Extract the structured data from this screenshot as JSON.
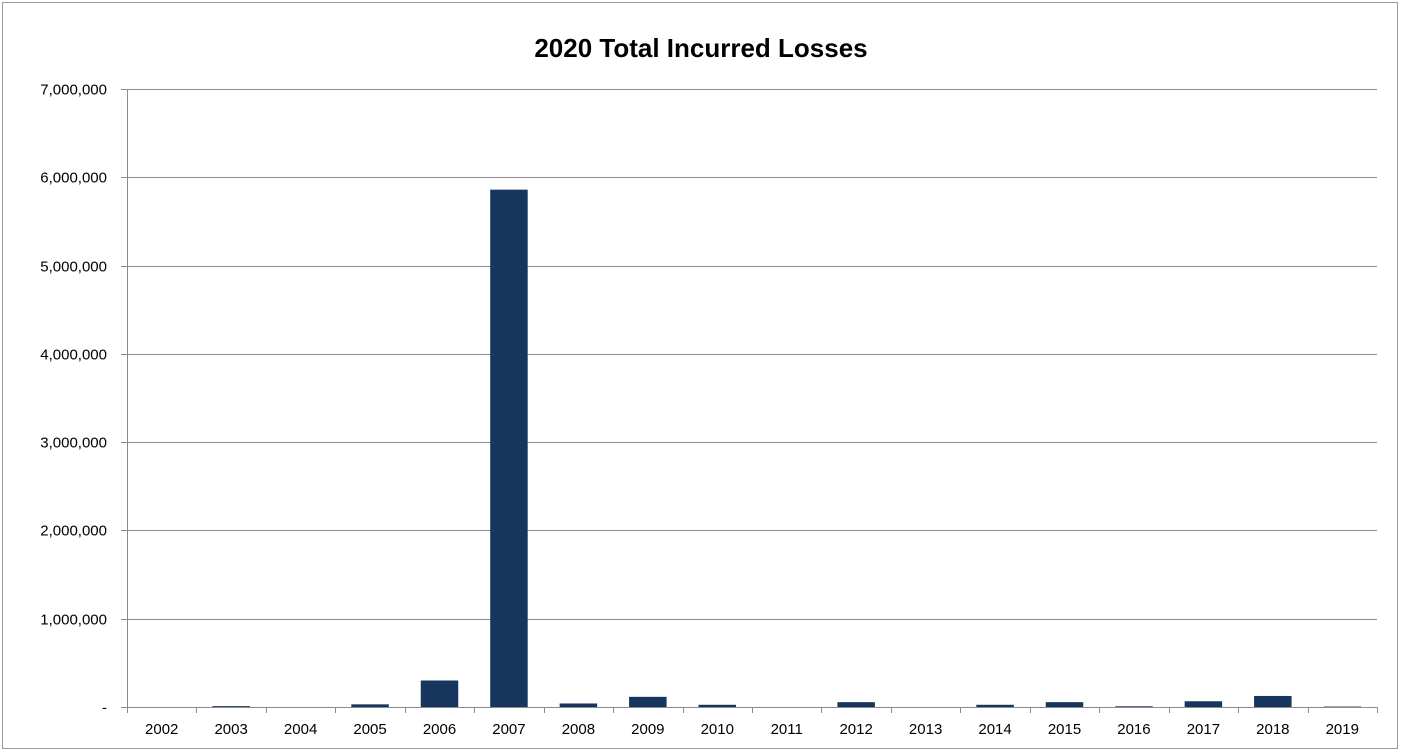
{
  "chart_data": {
    "type": "bar",
    "title": "2020 Total Incurred Losses",
    "xlabel": "",
    "ylabel": "",
    "categories": [
      "2002",
      "2003",
      "2004",
      "2005",
      "2006",
      "2007",
      "2008",
      "2009",
      "2010",
      "2011",
      "2012",
      "2013",
      "2014",
      "2015",
      "2016",
      "2017",
      "2018",
      "2019"
    ],
    "values": [
      0,
      10000,
      0,
      30000,
      300000,
      5860000,
      40000,
      115000,
      25000,
      0,
      55000,
      0,
      25000,
      55000,
      8000,
      65000,
      125000,
      5000
    ],
    "ylim": [
      0,
      7000000
    ],
    "yticks": [
      0,
      1000000,
      2000000,
      3000000,
      4000000,
      5000000,
      6000000,
      7000000
    ],
    "ytick_labels": [
      "-",
      "1,000,000",
      "2,000,000",
      "3,000,000",
      "4,000,000",
      "5,000,000",
      "6,000,000",
      "7,000,000"
    ],
    "grid": true,
    "legend": "none",
    "bar_color": "#17365d",
    "grid_color": "#8c8c8c",
    "axis_color": "#8c8c8c"
  }
}
